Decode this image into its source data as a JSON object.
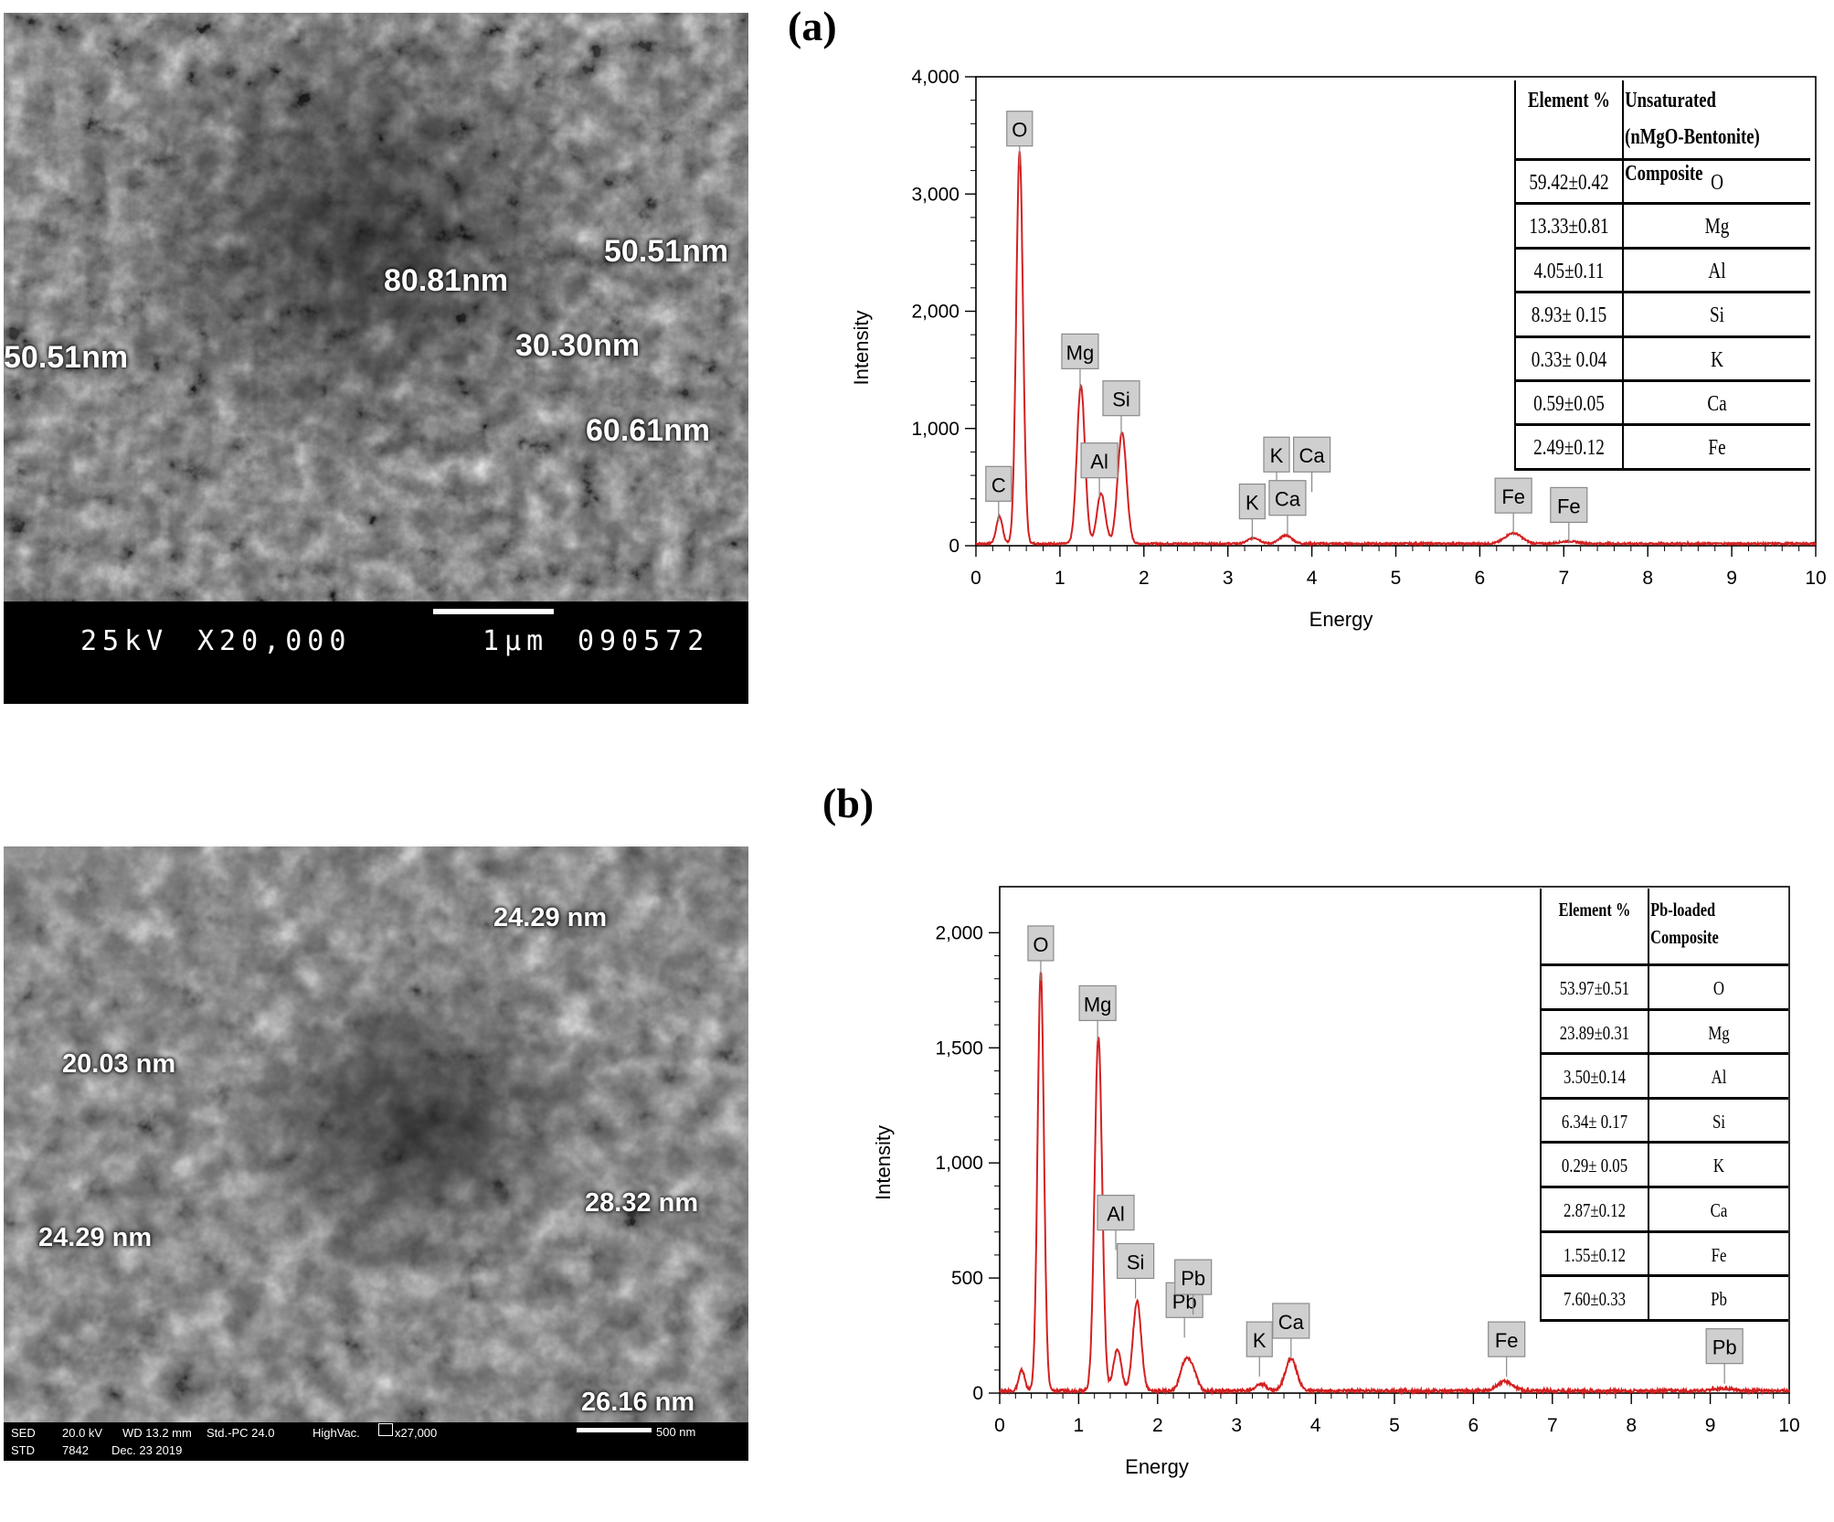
{
  "panels": [
    {
      "letter": "(a)",
      "sem": {
        "info": [
          "25kV",
          "X20,000",
          "1µm",
          "090572"
        ],
        "labels": [
          "50.51nm",
          "80.81nm",
          "50.51nm",
          "30.30nm",
          "60.61nm"
        ]
      },
      "edx_table": {
        "headers": [
          "Element %",
          "Unsaturated (nMgO-Bentonite) Composite"
        ],
        "rows": [
          [
            "59.42±0.42",
            "O"
          ],
          [
            "13.33±0.81",
            "Mg"
          ],
          [
            "4.05±0.11",
            "Al"
          ],
          [
            "8.93± 0.15",
            "Si"
          ],
          [
            "0.33± 0.04",
            "K"
          ],
          [
            "0.59±0.05",
            "Ca"
          ],
          [
            "2.49±0.12",
            "Fe"
          ]
        ]
      }
    },
    {
      "letter": "(b)",
      "sem": {
        "info": [
          "SED",
          "20.0 kV",
          "WD 13.2 mm",
          "Std.-PC 24.0",
          "HighVac.",
          "x27,000",
          "500 nm",
          "STD",
          "7842",
          "Dec. 23 2019"
        ],
        "labels": [
          "24.29 nm",
          "20.03 nm",
          "28.32 nm",
          "24.29 nm",
          "26.16 nm"
        ]
      },
      "edx_table": {
        "headers": [
          "Element %",
          "Pb-loaded Composite"
        ],
        "rows": [
          [
            "53.97±0.51",
            "O"
          ],
          [
            "23.89±0.31",
            "Mg"
          ],
          [
            "3.50±0.14",
            "Al"
          ],
          [
            "6.34± 0.17",
            "Si"
          ],
          [
            "0.29± 0.05",
            "K"
          ],
          [
            "2.87±0.12",
            "Ca"
          ],
          [
            "1.55±0.12",
            "Fe"
          ],
          [
            "7.60±0.33",
            "Pb"
          ]
        ]
      }
    }
  ],
  "chart_data": [
    {
      "type": "line",
      "xlabel": "Energy",
      "ylabel": "Intensity",
      "xlim": [
        0,
        10
      ],
      "ylim": [
        0,
        4000
      ],
      "xticks": [
        "0",
        "1",
        "2",
        "3",
        "4",
        "5",
        "6",
        "7",
        "8",
        "9",
        "10"
      ],
      "yticks": [
        "0",
        "1,000",
        "2,000",
        "3,000",
        "4,000"
      ],
      "color": "#d42020",
      "peaks": [
        {
          "x": 0.28,
          "y": 230
        },
        {
          "x": 0.52,
          "y": 3350
        },
        {
          "x": 1.25,
          "y": 1350
        },
        {
          "x": 1.49,
          "y": 430
        },
        {
          "x": 1.74,
          "y": 950
        },
        {
          "x": 3.31,
          "y": 50
        },
        {
          "x": 3.69,
          "y": 70
        },
        {
          "x": 6.4,
          "y": 90
        },
        {
          "x": 7.06,
          "y": 20
        }
      ],
      "peak_labels": [
        {
          "text": "C",
          "x": 0.27,
          "y": 520
        },
        {
          "text": "O",
          "x": 0.52,
          "y": 3550
        },
        {
          "text": "Mg",
          "x": 1.24,
          "y": 1650
        },
        {
          "text": "Al",
          "x": 1.47,
          "y": 720
        },
        {
          "text": "Si",
          "x": 1.73,
          "y": 1250
        },
        {
          "text": "K",
          "x": 3.29,
          "y": 370
        },
        {
          "text": "K",
          "x": 3.58,
          "y": 770
        },
        {
          "text": "Ca",
          "x": 3.71,
          "y": 400
        },
        {
          "text": "Ca",
          "x": 4.0,
          "y": 770
        },
        {
          "text": "Fe",
          "x": 6.4,
          "y": 420
        },
        {
          "text": "Fe",
          "x": 7.06,
          "y": 340
        }
      ]
    },
    {
      "type": "line",
      "xlabel": "Energy",
      "ylabel": "Intensity",
      "xlim": [
        0,
        10
      ],
      "ylim": [
        0,
        2200
      ],
      "xticks": [
        "0",
        "1",
        "2",
        "3",
        "4",
        "5",
        "6",
        "7",
        "8",
        "9",
        "10"
      ],
      "yticks": [
        "0",
        "500",
        "1,000",
        "1,500",
        "2,000"
      ],
      "color": "#d42020",
      "peaks": [
        {
          "x": 0.28,
          "y": 90
        },
        {
          "x": 0.52,
          "y": 1820
        },
        {
          "x": 1.25,
          "y": 1540
        },
        {
          "x": 1.49,
          "y": 180
        },
        {
          "x": 1.74,
          "y": 390
        },
        {
          "x": 2.34,
          "y": 110
        },
        {
          "x": 2.44,
          "y": 90
        },
        {
          "x": 3.31,
          "y": 30
        },
        {
          "x": 3.69,
          "y": 140
        },
        {
          "x": 6.4,
          "y": 40
        },
        {
          "x": 9.18,
          "y": 10
        }
      ],
      "peak_labels": [
        {
          "text": "O",
          "x": 0.52,
          "y": 1950
        },
        {
          "text": "Mg",
          "x": 1.24,
          "y": 1690
        },
        {
          "text": "Al",
          "x": 1.47,
          "y": 780
        },
        {
          "text": "Si",
          "x": 1.72,
          "y": 570
        },
        {
          "text": "Pb",
          "x": 2.34,
          "y": 400
        },
        {
          "text": "Pb",
          "x": 2.45,
          "y": 500
        },
        {
          "text": "K",
          "x": 3.29,
          "y": 230
        },
        {
          "text": "Ca",
          "x": 3.69,
          "y": 310
        },
        {
          "text": "Fe",
          "x": 6.42,
          "y": 230
        },
        {
          "text": "Pb",
          "x": 9.18,
          "y": 200
        }
      ]
    }
  ]
}
